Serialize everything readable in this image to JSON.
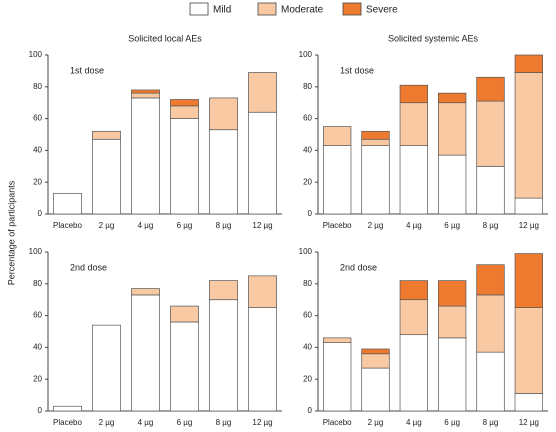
{
  "ylabel": "Percentage of participants",
  "chart_data": [
    {
      "type": "bar",
      "stacked": true,
      "title": "Solicited local AEs",
      "annotation": "1st dose",
      "categories": [
        "Placebo",
        "2 µg",
        "4 µg",
        "6 µg",
        "8 µg",
        "12 µg"
      ],
      "ylim": [
        0,
        100
      ],
      "yticks": [
        0,
        20,
        40,
        60,
        80,
        100
      ],
      "series": [
        {
          "name": "Mild",
          "color": "#ffffff",
          "values": [
            13,
            47,
            73,
            60,
            53,
            64
          ]
        },
        {
          "name": "Moderate",
          "color": "#f9c9a4",
          "values": [
            0,
            5,
            3,
            8,
            20,
            25
          ]
        },
        {
          "name": "Severe",
          "color": "#ee7a30",
          "values": [
            0,
            0,
            2,
            4,
            0,
            0
          ]
        }
      ]
    },
    {
      "type": "bar",
      "stacked": true,
      "title": "Solicited systemic AEs",
      "annotation": "1st dose",
      "categories": [
        "Placebo",
        "2 µg",
        "4 µg",
        "6 µg",
        "8 µg",
        "12 µg"
      ],
      "ylim": [
        0,
        100
      ],
      "yticks": [
        0,
        20,
        40,
        60,
        80,
        100
      ],
      "series": [
        {
          "name": "Mild",
          "color": "#ffffff",
          "values": [
            43,
            43,
            43,
            37,
            30,
            10
          ]
        },
        {
          "name": "Moderate",
          "color": "#f9c9a4",
          "values": [
            12,
            4,
            27,
            33,
            41,
            79
          ]
        },
        {
          "name": "Severe",
          "color": "#ee7a30",
          "values": [
            0,
            5,
            11,
            6,
            15,
            11
          ]
        }
      ]
    },
    {
      "type": "bar",
      "stacked": true,
      "annotation": "2nd dose",
      "categories": [
        "Placebo",
        "2 µg",
        "4 µg",
        "6 µg",
        "8 µg",
        "12 µg"
      ],
      "ylim": [
        0,
        100
      ],
      "yticks": [
        0,
        20,
        40,
        60,
        80,
        100
      ],
      "series": [
        {
          "name": "Mild",
          "color": "#ffffff",
          "values": [
            3,
            54,
            73,
            56,
            70,
            65
          ]
        },
        {
          "name": "Moderate",
          "color": "#f9c9a4",
          "values": [
            0,
            0,
            4,
            10,
            12,
            20
          ]
        },
        {
          "name": "Severe",
          "color": "#ee7a30",
          "values": [
            0,
            0,
            0,
            0,
            0,
            0
          ]
        }
      ]
    },
    {
      "type": "bar",
      "stacked": true,
      "annotation": "2nd dose",
      "categories": [
        "Placebo",
        "2 µg",
        "4 µg",
        "6 µg",
        "8 µg",
        "12 µg"
      ],
      "ylim": [
        0,
        100
      ],
      "yticks": [
        0,
        20,
        40,
        60,
        80,
        100
      ],
      "series": [
        {
          "name": "Mild",
          "color": "#ffffff",
          "values": [
            43,
            27,
            48,
            46,
            37,
            11
          ]
        },
        {
          "name": "Moderate",
          "color": "#f9c9a4",
          "values": [
            3,
            9,
            22,
            20,
            36,
            54
          ]
        },
        {
          "name": "Severe",
          "color": "#ee7a30",
          "values": [
            0,
            3,
            12,
            16,
            19,
            34
          ]
        }
      ]
    }
  ]
}
